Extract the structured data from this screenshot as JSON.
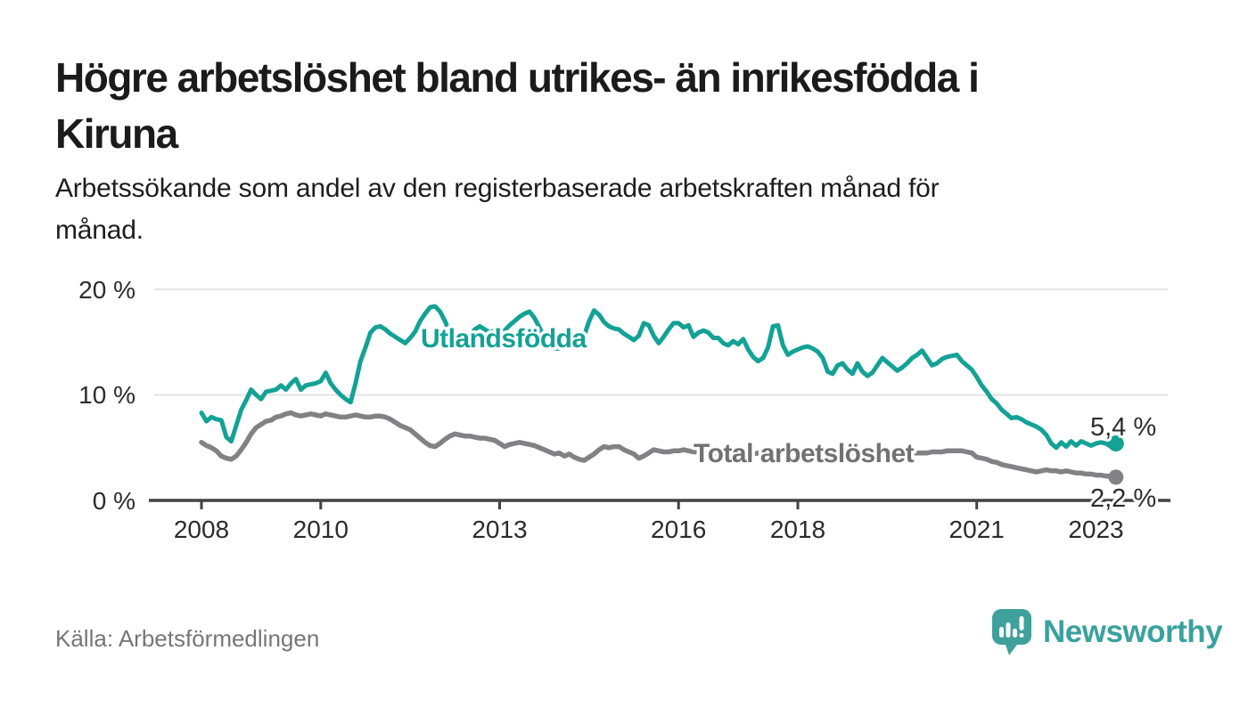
{
  "header": {
    "title_line1": "Högre arbetslöshet bland utrikes- än inrikesfödda i",
    "title_line2": "Kiruna",
    "subtitle_line1": "Arbetssökande som andel av den registerbaserade arbetskraften månad för",
    "subtitle_line2": "månad."
  },
  "footer": {
    "source": "Källa: Arbetsförmedlingen",
    "brand": "Newsworthy"
  },
  "colors": {
    "foreign_born_line": "#13a295",
    "total_line": "#828286",
    "gridline": "#e3e3e3",
    "axis": "#424242",
    "text_dark": "#1b1b1b",
    "text_gray": "#767676",
    "brand_teal": "#3aa19d"
  },
  "chart_data": {
    "type": "line",
    "title": "Högre arbetslöshet bland utrikes- än inrikesfödda i Kiruna",
    "subtitle": "Arbetssökande som andel av den registerbaserade arbetskraften månad för månad.",
    "x_start": "2008-01",
    "frequency": "monthly",
    "x_axis": {
      "range_years": [
        2008,
        2023.4
      ],
      "ticks": [
        {
          "value": 2008,
          "label": "2008"
        },
        {
          "value": 2010,
          "label": "2010"
        },
        {
          "value": 2013,
          "label": "2013"
        },
        {
          "value": 2016,
          "label": "2016"
        },
        {
          "value": 2018,
          "label": "2018"
        },
        {
          "value": 2021,
          "label": "2021"
        },
        {
          "value": 2023,
          "label": "2023"
        }
      ]
    },
    "y_axis": {
      "unit": "%",
      "range": [
        0,
        21
      ],
      "tick_values": [
        20,
        10,
        0
      ],
      "tick_labels": [
        "20 %",
        "10 %",
        "0 %"
      ],
      "grid": true
    },
    "series": [
      {
        "name": "Utlandsfödda",
        "color": "#13a295",
        "end_label": "5,4 %",
        "end_value": 5.4,
        "values": [
          8.3,
          7.5,
          7.9,
          7.7,
          7.6,
          6.0,
          5.6,
          7.1,
          8.6,
          9.5,
          10.5,
          10.0,
          9.6,
          10.3,
          10.4,
          10.5,
          10.9,
          10.5,
          11.1,
          11.5,
          10.5,
          10.9,
          11.0,
          11.1,
          11.3,
          12.1,
          11.1,
          10.5,
          10.0,
          9.6,
          9.3,
          11.1,
          13.2,
          14.5,
          15.9,
          16.4,
          16.5,
          16.2,
          15.8,
          15.5,
          15.2,
          14.9,
          15.4,
          16.0,
          17.0,
          17.7,
          18.3,
          18.4,
          17.9,
          17.0,
          15.8,
          14.9,
          14.4,
          14.9,
          15.6,
          16.2,
          16.5,
          16.2,
          15.9,
          16.1,
          15.8,
          16.1,
          16.6,
          17.0,
          17.4,
          17.7,
          17.9,
          17.3,
          16.4,
          15.4,
          14.7,
          14.4,
          14.4,
          15.0,
          15.5,
          14.9,
          14.6,
          15.6,
          17.0,
          18.0,
          17.6,
          16.9,
          16.5,
          16.3,
          16.2,
          15.8,
          15.5,
          15.2,
          15.6,
          16.8,
          16.6,
          15.6,
          14.9,
          15.5,
          16.2,
          16.8,
          16.8,
          16.4,
          16.6,
          15.5,
          15.9,
          16.1,
          15.9,
          15.4,
          15.4,
          14.9,
          14.7,
          15.1,
          14.8,
          15.3,
          14.3,
          13.6,
          13.2,
          13.5,
          14.5,
          16.5,
          16.6,
          14.7,
          13.8,
          14.1,
          14.3,
          14.5,
          14.6,
          14.4,
          14.1,
          13.5,
          12.2,
          12.0,
          12.8,
          13.0,
          12.4,
          12.0,
          13.0,
          12.2,
          11.8,
          12.1,
          12.8,
          13.5,
          13.1,
          12.7,
          12.3,
          12.6,
          13.0,
          13.5,
          13.8,
          14.2,
          13.5,
          12.8,
          13.0,
          13.4,
          13.6,
          13.7,
          13.8,
          13.2,
          12.8,
          12.4,
          11.7,
          10.9,
          10.3,
          9.6,
          9.2,
          8.6,
          8.2,
          7.8,
          7.9,
          7.7,
          7.4,
          7.2,
          7.0,
          6.7,
          6.2,
          5.4,
          5.0,
          5.5,
          5.1,
          5.6,
          5.2,
          5.6,
          5.4,
          5.2,
          5.4,
          5.5,
          5.4,
          5.1,
          5.4
        ]
      },
      {
        "name": "Total arbetslöshet",
        "color": "#828286",
        "end_label": "2,2 %",
        "end_value": 2.2,
        "values": [
          5.5,
          5.2,
          5.0,
          4.7,
          4.2,
          4.0,
          3.9,
          4.2,
          4.8,
          5.5,
          6.3,
          6.9,
          7.2,
          7.5,
          7.6,
          7.9,
          8.0,
          8.2,
          8.3,
          8.1,
          8.0,
          8.1,
          8.2,
          8.1,
          8.0,
          8.2,
          8.1,
          8.0,
          7.9,
          7.9,
          8.0,
          8.1,
          8.0,
          7.9,
          7.9,
          8.0,
          8.0,
          7.9,
          7.7,
          7.4,
          7.1,
          6.9,
          6.7,
          6.3,
          5.9,
          5.5,
          5.2,
          5.1,
          5.4,
          5.8,
          6.1,
          6.3,
          6.2,
          6.1,
          6.1,
          6.0,
          5.9,
          5.9,
          5.8,
          5.7,
          5.4,
          5.1,
          5.3,
          5.4,
          5.5,
          5.4,
          5.3,
          5.2,
          5.0,
          4.8,
          4.6,
          4.4,
          4.5,
          4.2,
          4.4,
          4.1,
          3.9,
          3.8,
          4.1,
          4.4,
          4.8,
          5.1,
          5.0,
          5.1,
          5.1,
          4.8,
          4.6,
          4.4,
          4.0,
          4.2,
          4.5,
          4.8,
          4.7,
          4.6,
          4.6,
          4.7,
          4.7,
          4.8,
          4.7,
          4.6,
          4.6,
          4.5,
          4.5,
          4.4,
          4.5,
          4.5,
          4.4,
          4.5,
          4.5,
          4.4,
          4.3,
          4.4,
          4.5,
          4.4,
          4.3,
          4.4,
          4.5,
          4.4,
          4.4,
          4.5,
          4.5,
          4.5,
          4.4,
          4.4,
          4.5,
          4.4,
          4.3,
          4.3,
          4.4,
          4.4,
          4.3,
          4.4,
          4.4,
          4.4,
          4.5,
          4.4,
          4.4,
          4.5,
          4.4,
          4.4,
          4.5,
          4.5,
          4.4,
          4.5,
          4.5,
          4.5,
          4.5,
          4.6,
          4.6,
          4.6,
          4.7,
          4.7,
          4.7,
          4.7,
          4.6,
          4.5,
          4.1,
          4.0,
          3.9,
          3.7,
          3.6,
          3.4,
          3.3,
          3.2,
          3.1,
          3.0,
          2.9,
          2.8,
          2.7,
          2.8,
          2.9,
          2.8,
          2.8,
          2.7,
          2.8,
          2.7,
          2.6,
          2.6,
          2.5,
          2.5,
          2.4,
          2.4,
          2.3,
          2.3,
          2.2
        ]
      }
    ],
    "legend_position": "inline-labels"
  }
}
